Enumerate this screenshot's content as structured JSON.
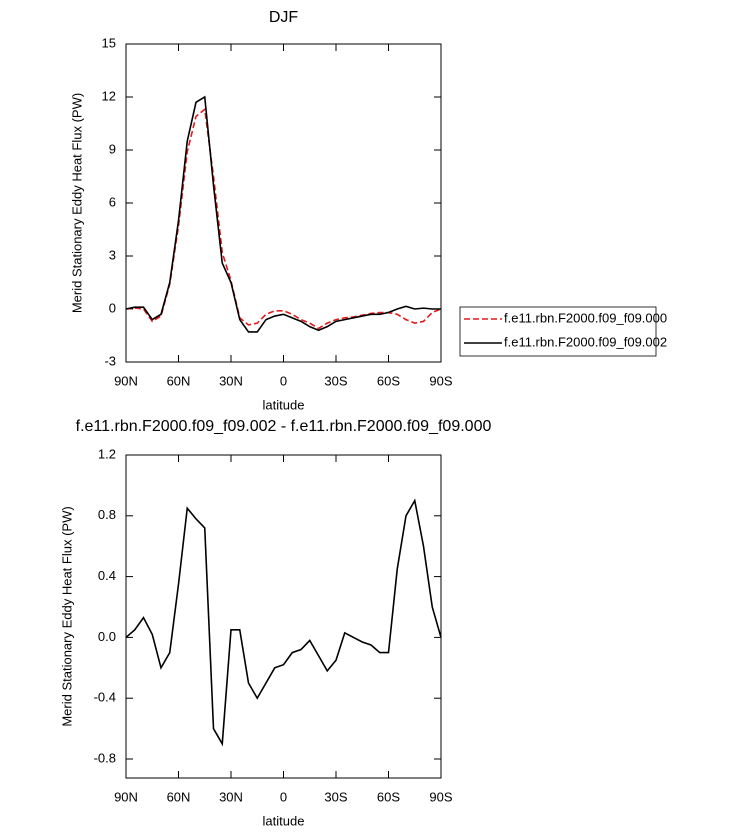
{
  "chart_data": [
    {
      "type": "line",
      "title": "DJF",
      "x_label": "latitude",
      "y_label": "Merid Stationary Eddy Heat Flux (PW)",
      "x": [
        90,
        85,
        80,
        75,
        70,
        65,
        60,
        55,
        50,
        45,
        40,
        35,
        30,
        25,
        20,
        15,
        10,
        5,
        0,
        -5,
        -10,
        -15,
        -20,
        -25,
        -30,
        -35,
        -40,
        -45,
        -50,
        -55,
        -60,
        -65,
        -70,
        -75,
        -80,
        -85,
        -90
      ],
      "xlim": [
        90,
        -90
      ],
      "xticks": [
        {
          "value": 90,
          "label": "90N"
        },
        {
          "value": 60,
          "label": "60N"
        },
        {
          "value": 30,
          "label": "30N"
        },
        0,
        {
          "value": -30,
          "label": "30S"
        },
        {
          "value": -60,
          "label": "60S"
        },
        {
          "value": -90,
          "label": "90S"
        }
      ],
      "ylim": [
        -3,
        15
      ],
      "yticks": [
        -3,
        0,
        3,
        6,
        9,
        12,
        15
      ],
      "legend": "outside-right",
      "series": [
        {
          "name": "f.e11.rbn.F2000.f09_f09.000",
          "color": "#e41a1c",
          "line_style": "dashed",
          "values": [
            0,
            0.05,
            0,
            -0.7,
            -0.4,
            1.4,
            4.7,
            8.9,
            10.9,
            11.3,
            7.5,
            3.2,
            1.6,
            -0.5,
            -0.9,
            -0.8,
            -0.3,
            -0.1,
            -0.1,
            -0.3,
            -0.6,
            -0.8,
            -1.1,
            -0.8,
            -0.6,
            -0.5,
            -0.45,
            -0.35,
            -0.25,
            -0.2,
            -0.2,
            -0.3,
            -0.6,
            -0.8,
            -0.7,
            -0.2,
            0
          ]
        },
        {
          "name": "f.e11.rbn.F2000.f09_f09.002",
          "color": "#000000",
          "line_style": "solid",
          "values": [
            0,
            0.1,
            0.1,
            -0.6,
            -0.3,
            1.5,
            5,
            9.5,
            11.7,
            12,
            7,
            2.6,
            1.5,
            -0.6,
            -1.3,
            -1.3,
            -0.6,
            -0.4,
            -0.3,
            -0.5,
            -0.7,
            -1,
            -1.2,
            -1,
            -0.7,
            -0.6,
            -0.5,
            -0.4,
            -0.3,
            -0.3,
            -0.2,
            0,
            0.15,
            0,
            0.05,
            0,
            0
          ]
        }
      ]
    },
    {
      "type": "line",
      "title": "f.e11.rbn.F2000.f09_f09.002 - f.e11.rbn.F2000.f09_f09.000",
      "x_label": "latitude",
      "y_label": "Merid Stationary Eddy Heat Flux (PW)",
      "x": [
        90,
        85,
        80,
        75,
        70,
        65,
        60,
        55,
        50,
        45,
        40,
        35,
        30,
        25,
        20,
        15,
        10,
        5,
        0,
        -5,
        -10,
        -15,
        -20,
        -25,
        -30,
        -35,
        -40,
        -45,
        -50,
        -55,
        -60,
        -65,
        -70,
        -75,
        -80,
        -85,
        -90
      ],
      "xlim": [
        90,
        -90
      ],
      "xticks": [
        {
          "value": 90,
          "label": "90N"
        },
        {
          "value": 60,
          "label": "60N"
        },
        {
          "value": 30,
          "label": "30N"
        },
        0,
        {
          "value": -30,
          "label": "30S"
        },
        {
          "value": -60,
          "label": "60S"
        },
        {
          "value": -90,
          "label": "90S"
        }
      ],
      "ylim": [
        -0.925,
        1.2
      ],
      "yticks": [
        -0.8,
        -0.4,
        {
          "value": 0,
          "label": "0.0"
        },
        0.4,
        0.8,
        1.2
      ],
      "series": [
        {
          "color": "#000000",
          "line_style": "solid",
          "values": [
            0,
            0.05,
            0.13,
            0.02,
            -0.2,
            -0.1,
            0.35,
            0.85,
            0.78,
            0.72,
            -0.6,
            -0.7,
            0.05,
            0.05,
            -0.3,
            -0.4,
            -0.3,
            -0.2,
            -0.18,
            -0.1,
            -0.08,
            -0.02,
            -0.12,
            -0.22,
            -0.15,
            0.03,
            0,
            -0.03,
            -0.05,
            -0.1,
            -0.1,
            0.45,
            0.8,
            0.9,
            0.6,
            0.2,
            0
          ]
        }
      ]
    }
  ]
}
